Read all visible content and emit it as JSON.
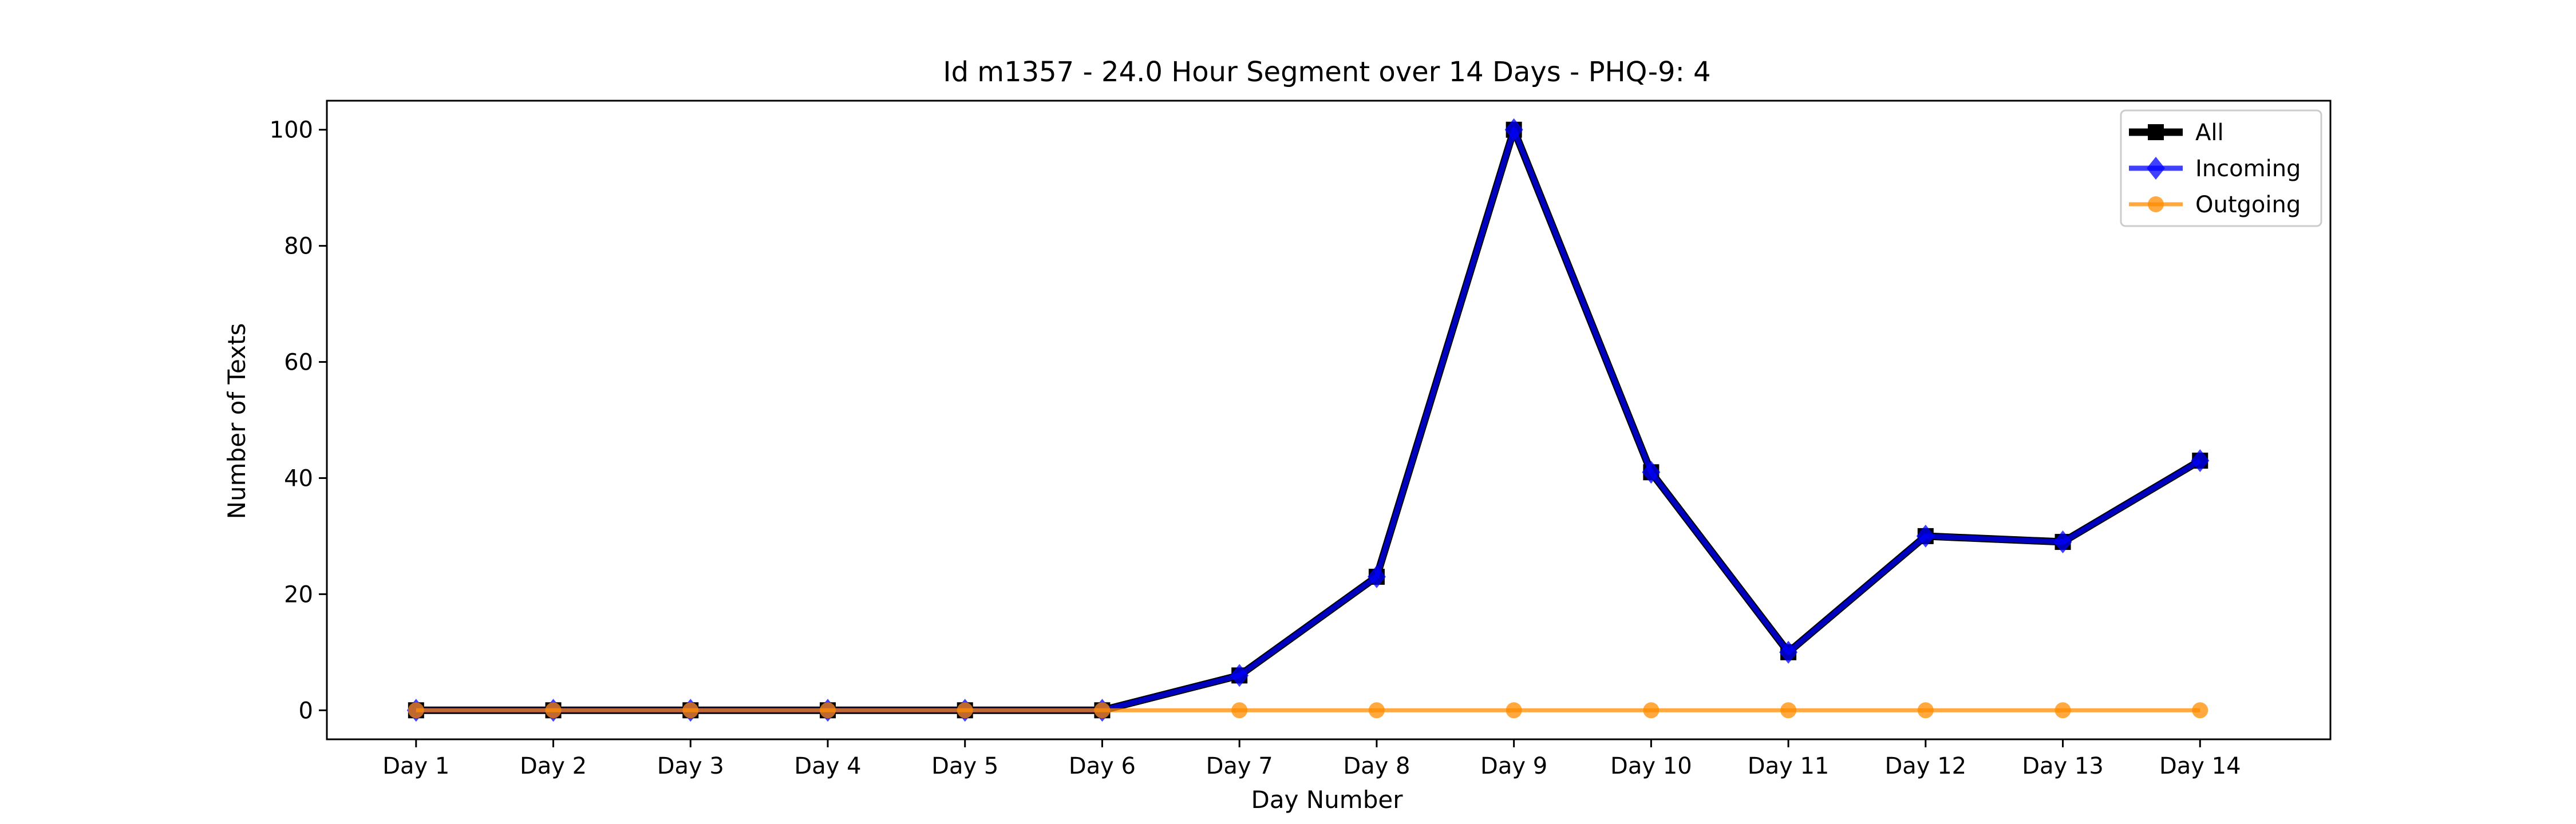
{
  "chart_data": {
    "type": "line",
    "title": "Id m1357 - 24.0 Hour Segment over 14 Days - PHQ-9: 4",
    "xlabel": "Day Number",
    "ylabel": "Number of Texts",
    "categories": [
      "Day 1",
      "Day 2",
      "Day 3",
      "Day 4",
      "Day 5",
      "Day 6",
      "Day 7",
      "Day 8",
      "Day 9",
      "Day 10",
      "Day 11",
      "Day 12",
      "Day 13",
      "Day 14"
    ],
    "ylim": [
      -5,
      105
    ],
    "yticks": [
      0,
      20,
      40,
      60,
      80,
      100
    ],
    "grid": false,
    "legend_position": "top-right",
    "series": [
      {
        "name": "All",
        "color": "#000000",
        "marker": "square",
        "values": [
          0,
          0,
          0,
          0,
          0,
          0,
          6,
          23,
          100,
          41,
          10,
          30,
          29,
          43
        ]
      },
      {
        "name": "Incoming",
        "color": "#0000ff",
        "marker": "diamond",
        "values": [
          0,
          0,
          0,
          0,
          0,
          0,
          6,
          23,
          100,
          41,
          10,
          30,
          29,
          43
        ]
      },
      {
        "name": "Outgoing",
        "color": "#ff8c00",
        "marker": "circle",
        "values": [
          0,
          0,
          0,
          0,
          0,
          0,
          0,
          0,
          0,
          0,
          0,
          0,
          0,
          0
        ]
      }
    ]
  }
}
